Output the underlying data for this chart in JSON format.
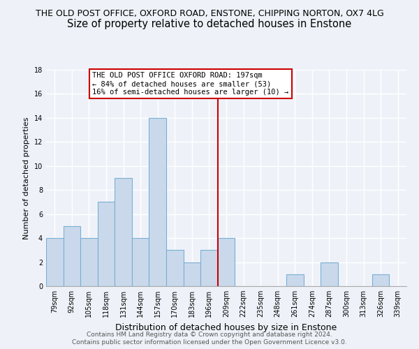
{
  "title_line1": "THE OLD POST OFFICE, OXFORD ROAD, ENSTONE, CHIPPING NORTON, OX7 4LG",
  "title_line2": "Size of property relative to detached houses in Enstone",
  "xlabel": "Distribution of detached houses by size in Enstone",
  "ylabel": "Number of detached properties",
  "footer_line1": "Contains HM Land Registry data © Crown copyright and database right 2024.",
  "footer_line2": "Contains public sector information licensed under the Open Government Licence v3.0.",
  "bar_labels": [
    "79sqm",
    "92sqm",
    "105sqm",
    "118sqm",
    "131sqm",
    "144sqm",
    "157sqm",
    "170sqm",
    "183sqm",
    "196sqm",
    "209sqm",
    "222sqm",
    "235sqm",
    "248sqm",
    "261sqm",
    "274sqm",
    "287sqm",
    "300sqm",
    "313sqm",
    "326sqm",
    "339sqm"
  ],
  "bar_values": [
    4,
    5,
    4,
    7,
    9,
    4,
    14,
    3,
    2,
    3,
    4,
    0,
    0,
    0,
    1,
    0,
    2,
    0,
    0,
    1,
    0
  ],
  "bar_color": "#c9d9eb",
  "bar_edge_color": "#7aafd4",
  "vline_x": 9.5,
  "vline_color": "#cc0000",
  "annotation_title": "THE OLD POST OFFICE OXFORD ROAD: 197sqm",
  "annotation_line2": "← 84% of detached houses are smaller (53)",
  "annotation_line3": "16% of semi-detached houses are larger (10) →",
  "ylim": [
    0,
    18
  ],
  "background_color": "#eef2f8",
  "grid_color": "#ffffff",
  "title1_fontsize": 9.0,
  "title2_fontsize": 10.5,
  "annotation_fontsize": 7.5,
  "ylabel_fontsize": 8.0,
  "xlabel_fontsize": 9.0,
  "tick_fontsize": 7.0,
  "footer_fontsize": 6.5
}
